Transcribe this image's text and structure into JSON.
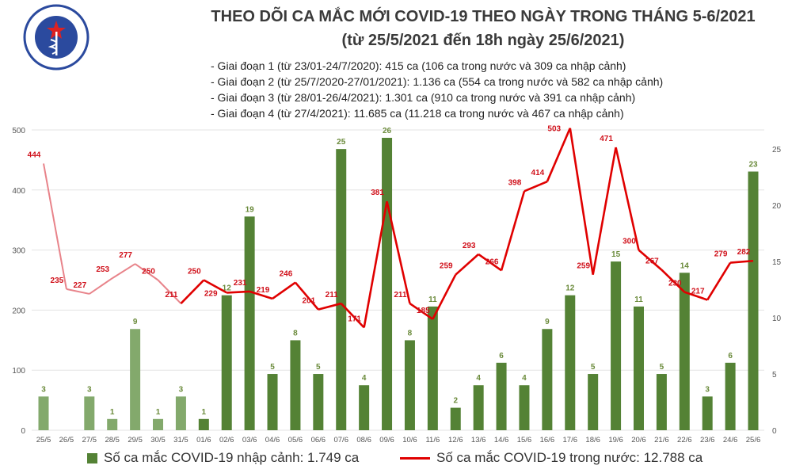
{
  "header": {
    "title_line1": "THEO DÕI CA MẮC MỚI COVID-19 THEO NGÀY TRONG THÁNG 5-6/2021",
    "title_line2": "(từ 25/5/2021 đến 18h ngày 25/6/2021)",
    "phases": [
      "- Giai đoạn 1 (từ 23/01-24/7/2020): 415 ca (106 ca trong nước và 309 ca nhập cảnh)",
      "- Giai đoạn 2 (từ 25/7/2020-27/01/2021): 1.136 ca (554 ca trong nước và 582 ca nhập cảnh)",
      "- Giai đoạn 3 (từ 28/01-26/4/2021): 1.301 ca (910 ca trong nước và 391 ca nhập cảnh)",
      "- Giai đoạn 4 (từ 27/4/2021): 11.685 ca (11.218 ca trong nước và 467 ca nhập cảnh)"
    ]
  },
  "logo": {
    "top_text": "BỘ Y TẾ",
    "bottom_text": "MINISTRY OF HEALTH",
    "color": "#2b4a9e"
  },
  "chart_data": {
    "type": "bar+line",
    "categories": [
      "25/5",
      "26/5",
      "27/5",
      "28/5",
      "29/5",
      "30/5",
      "31/5",
      "01/6",
      "02/6",
      "03/6",
      "04/6",
      "05/6",
      "06/6",
      "07/6",
      "08/6",
      "09/6",
      "10/6",
      "11/6",
      "12/6",
      "13/6",
      "14/6",
      "15/6",
      "16/6",
      "17/6",
      "18/6",
      "19/6",
      "20/6",
      "21/6",
      "22/6",
      "23/6",
      "24/6",
      "25/6"
    ],
    "series": [
      {
        "name": "Số ca mắc COVID-19 nhập cảnh: 1.749 ca",
        "type": "bar",
        "axis": "right",
        "color": "#548235",
        "light_color": "#83a96c",
        "values": [
          3,
          null,
          3,
          1,
          9,
          1,
          3,
          1,
          12,
          19,
          5,
          8,
          5,
          25,
          4,
          26,
          8,
          11,
          2,
          4,
          6,
          4,
          9,
          12,
          5,
          15,
          11,
          5,
          14,
          3,
          6,
          23
        ]
      },
      {
        "name": "Số ca mắc COVID-19 trong nước: 12.788 ca",
        "type": "line",
        "axis": "left",
        "color": "#e00000",
        "light_color": "#e8838a",
        "values": [
          444,
          235,
          227,
          253,
          277,
          250,
          211,
          250,
          229,
          231,
          219,
          246,
          201,
          211,
          171,
          381,
          211,
          185,
          259,
          293,
          266,
          398,
          414,
          503,
          259,
          471,
          300,
          267,
          230,
          217,
          279,
          282
        ]
      }
    ],
    "left_axis": {
      "range": [
        0,
        500
      ],
      "ticks": [
        0,
        100,
        200,
        300,
        400,
        500
      ]
    },
    "right_axis": {
      "range": [
        0,
        26.7
      ],
      "ticks": [
        0,
        5,
        10,
        15,
        20,
        25
      ]
    },
    "grid": true,
    "legend": "bottom"
  }
}
